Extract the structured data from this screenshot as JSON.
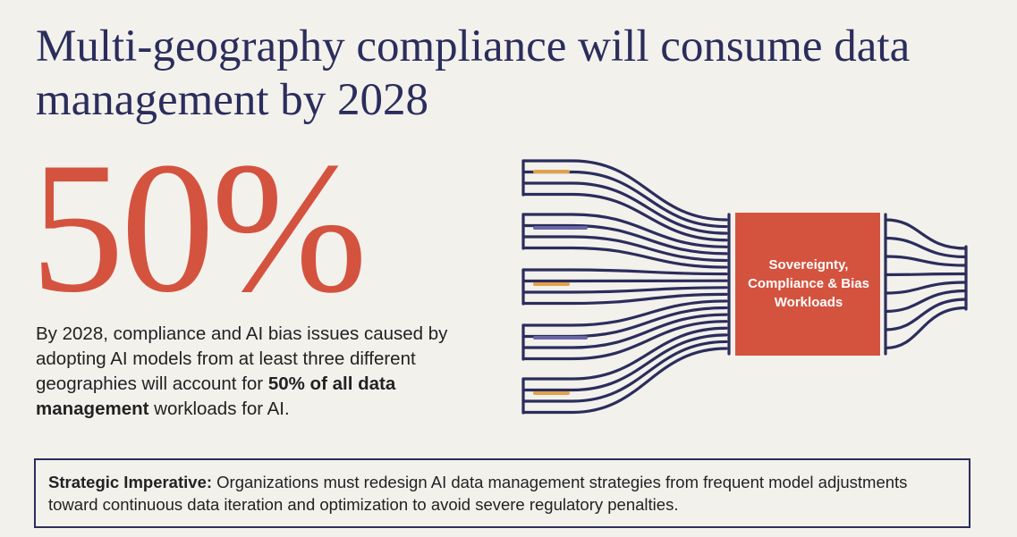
{
  "title": "Multi-geography compliance will consume data management by 2028",
  "headline_stat": "50%",
  "description": {
    "segments": [
      {
        "text": "By 2028, compliance and AI bias issues caused by adopting AI models from at least three different geographies will account for ",
        "bold": false
      },
      {
        "text": "50% of all data management",
        "bold": true
      },
      {
        "text": " workloads for AI.",
        "bold": false
      }
    ]
  },
  "diagram": {
    "box_label": "Sovereignty, Compliance & Bias Workloads"
  },
  "callout": {
    "label": "Strategic Imperative:",
    "text": "Organizations must redesign AI data management strategies from frequent model adjustments toward continuous data iteration and optimization to avoid severe regulatory penalties."
  }
}
